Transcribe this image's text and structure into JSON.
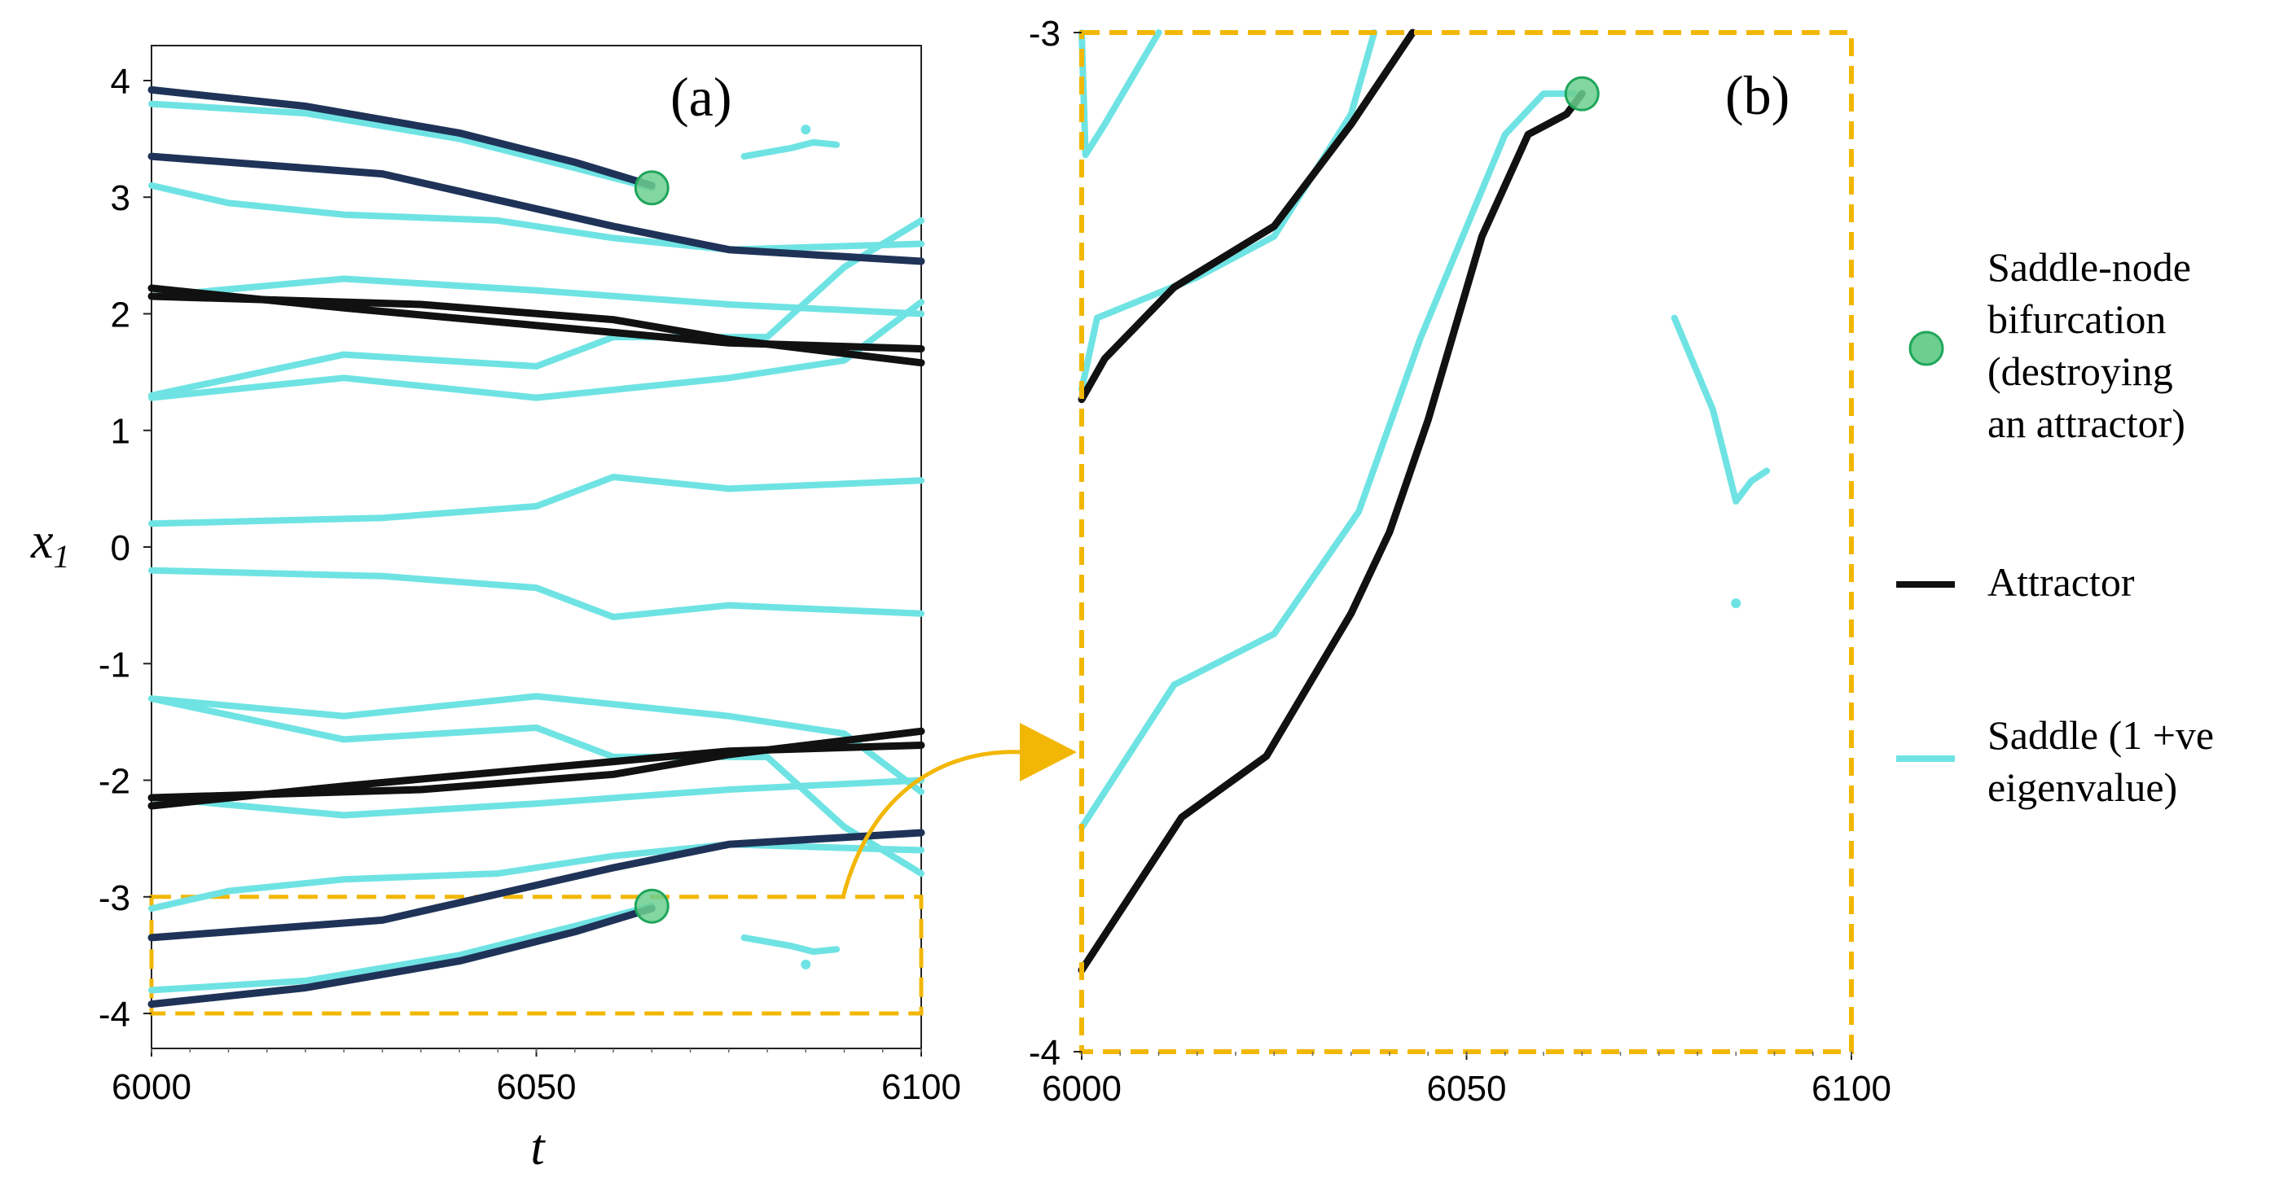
{
  "colors": {
    "saddle": "#6fe3e3",
    "attractor": "#111111",
    "attractor_dark": "#1f3358",
    "bifurcation_fill": "#6ccf8f",
    "bifurcation_stroke": "#1fa65a",
    "highlight": "#f2b705"
  },
  "chart_data": [
    {
      "panel": "(a)",
      "type": "line",
      "xlabel": "t",
      "ylabel": "x",
      "ylabel_sub": "1",
      "xlim": [
        6000,
        6100
      ],
      "ylim": [
        -4.3,
        4.3
      ],
      "xticks": [
        "6000",
        "6050",
        "6100"
      ],
      "yticks": [
        "4",
        "3",
        "2",
        "1",
        "0",
        "-1",
        "-2",
        "-3",
        "-4"
      ],
      "zoom_box": {
        "x": [
          6000,
          6100
        ],
        "y": [
          -4,
          -3
        ]
      },
      "series": [
        {
          "kind": "saddle",
          "points": [
            [
              6000,
              3.8
            ],
            [
              6020,
              3.72
            ],
            [
              6040,
              3.5
            ],
            [
              6055,
              3.25
            ],
            [
              6065,
              3.08
            ]
          ]
        },
        {
          "kind": "saddle",
          "points": [
            [
              6000,
              3.1
            ],
            [
              6010,
              2.95
            ],
            [
              6025,
              2.85
            ],
            [
              6045,
              2.8
            ],
            [
              6060,
              2.65
            ],
            [
              6075,
              2.55
            ],
            [
              6100,
              2.6
            ]
          ]
        },
        {
          "kind": "saddle",
          "points": [
            [
              6000,
              2.15
            ],
            [
              6025,
              2.3
            ],
            [
              6050,
              2.2
            ],
            [
              6075,
              2.08
            ],
            [
              6100,
              2.0
            ]
          ]
        },
        {
          "kind": "saddle",
          "points": [
            [
              6000,
              1.3
            ],
            [
              6025,
              1.65
            ],
            [
              6050,
              1.55
            ],
            [
              6060,
              1.8
            ],
            [
              6080,
              1.8
            ],
            [
              6090,
              2.4
            ],
            [
              6100,
              2.8
            ]
          ]
        },
        {
          "kind": "saddle",
          "points": [
            [
              6000,
              1.28
            ],
            [
              6025,
              1.45
            ],
            [
              6050,
              1.28
            ],
            [
              6075,
              1.45
            ],
            [
              6090,
              1.6
            ],
            [
              6100,
              2.1
            ]
          ]
        },
        {
          "kind": "saddle",
          "points": [
            [
              6000,
              0.2
            ],
            [
              6030,
              0.25
            ],
            [
              6050,
              0.35
            ],
            [
              6060,
              0.6
            ],
            [
              6075,
              0.5
            ],
            [
              6100,
              0.57
            ]
          ]
        },
        {
          "kind": "saddle",
          "points": [
            [
              6000,
              -0.2
            ],
            [
              6030,
              -0.25
            ],
            [
              6050,
              -0.35
            ],
            [
              6060,
              -0.6
            ],
            [
              6075,
              -0.5
            ],
            [
              6100,
              -0.57
            ]
          ]
        },
        {
          "kind": "saddle",
          "points": [
            [
              6000,
              -1.3
            ],
            [
              6025,
              -1.45
            ],
            [
              6050,
              -1.28
            ],
            [
              6075,
              -1.45
            ],
            [
              6090,
              -1.6
            ],
            [
              6100,
              -2.1
            ]
          ]
        },
        {
          "kind": "saddle",
          "points": [
            [
              6000,
              -1.3
            ],
            [
              6025,
              -1.65
            ],
            [
              6050,
              -1.55
            ],
            [
              6060,
              -1.8
            ],
            [
              6080,
              -1.8
            ],
            [
              6090,
              -2.4
            ],
            [
              6100,
              -2.8
            ]
          ]
        },
        {
          "kind": "saddle",
          "points": [
            [
              6000,
              -2.15
            ],
            [
              6025,
              -2.3
            ],
            [
              6050,
              -2.2
            ],
            [
              6075,
              -2.08
            ],
            [
              6100,
              -2.0
            ]
          ]
        },
        {
          "kind": "saddle",
          "points": [
            [
              6000,
              -3.1
            ],
            [
              6010,
              -2.95
            ],
            [
              6025,
              -2.85
            ],
            [
              6045,
              -2.8
            ],
            [
              6060,
              -2.65
            ],
            [
              6075,
              -2.55
            ],
            [
              6100,
              -2.6
            ]
          ]
        },
        {
          "kind": "saddle",
          "points": [
            [
              6000,
              -3.8
            ],
            [
              6020,
              -3.72
            ],
            [
              6040,
              -3.5
            ],
            [
              6055,
              -3.25
            ],
            [
              6065,
              -3.08
            ]
          ]
        },
        {
          "kind": "saddle",
          "points": [
            [
              6077,
              3.35
            ],
            [
              6083,
              3.42
            ],
            [
              6086,
              3.47
            ],
            [
              6089,
              3.45
            ]
          ]
        },
        {
          "kind": "saddle",
          "points": [
            [
              6077,
              -3.35
            ],
            [
              6083,
              -3.42
            ],
            [
              6086,
              -3.47
            ],
            [
              6089,
              -3.45
            ]
          ]
        },
        {
          "kind": "attractor_dark",
          "points": [
            [
              6000,
              3.92
            ],
            [
              6020,
              3.78
            ],
            [
              6040,
              3.55
            ],
            [
              6055,
              3.3
            ],
            [
              6065,
              3.1
            ]
          ]
        },
        {
          "kind": "attractor_dark",
          "points": [
            [
              6000,
              3.35
            ],
            [
              6030,
              3.2
            ],
            [
              6060,
              2.75
            ],
            [
              6075,
              2.55
            ],
            [
              6100,
              2.45
            ]
          ]
        },
        {
          "kind": "attractor",
          "points": [
            [
              6000,
              2.22
            ],
            [
              6025,
              2.05
            ],
            [
              6050,
              1.9
            ],
            [
              6075,
              1.75
            ],
            [
              6100,
              1.7
            ]
          ]
        },
        {
          "kind": "attractor",
          "points": [
            [
              6000,
              2.15
            ],
            [
              6035,
              2.08
            ],
            [
              6060,
              1.95
            ],
            [
              6075,
              1.78
            ],
            [
              6100,
              1.58
            ]
          ]
        },
        {
          "kind": "attractor",
          "points": [
            [
              6000,
              -2.22
            ],
            [
              6025,
              -2.05
            ],
            [
              6050,
              -1.9
            ],
            [
              6075,
              -1.75
            ],
            [
              6100,
              -1.7
            ]
          ]
        },
        {
          "kind": "attractor",
          "points": [
            [
              6000,
              -2.15
            ],
            [
              6035,
              -2.08
            ],
            [
              6060,
              -1.95
            ],
            [
              6075,
              -1.78
            ],
            [
              6100,
              -1.58
            ]
          ]
        },
        {
          "kind": "attractor_dark",
          "points": [
            [
              6000,
              -3.92
            ],
            [
              6020,
              -3.78
            ],
            [
              6040,
              -3.55
            ],
            [
              6055,
              -3.3
            ],
            [
              6065,
              -3.1
            ]
          ]
        },
        {
          "kind": "attractor_dark",
          "points": [
            [
              6000,
              -3.35
            ],
            [
              6030,
              -3.2
            ],
            [
              6060,
              -2.75
            ],
            [
              6075,
              -2.55
            ],
            [
              6100,
              -2.45
            ]
          ]
        }
      ],
      "bifurcations": [
        [
          6065,
          3.08
        ],
        [
          6065,
          -3.08
        ]
      ],
      "points": [
        [
          6085,
          3.58
        ],
        [
          6085,
          -3.58
        ]
      ]
    },
    {
      "panel": "(b)",
      "type": "line",
      "xlim": [
        6000,
        6100
      ],
      "ylim": [
        -4,
        -3
      ],
      "xticks": [
        "6000",
        "6050",
        "6100"
      ],
      "yticks": [
        "-3",
        "-4"
      ],
      "series": [
        {
          "kind": "saddle",
          "points": [
            [
              6000,
              -3.0
            ],
            [
              6000.5,
              -3.12
            ],
            [
              6003,
              -3.09
            ],
            [
              6010,
              -3.0
            ]
          ]
        },
        {
          "kind": "saddle",
          "points": [
            [
              6000,
              -3.35
            ],
            [
              6002,
              -3.28
            ],
            [
              6015,
              -3.24
            ],
            [
              6025,
              -3.2
            ],
            [
              6035,
              -3.08
            ],
            [
              6038,
              -3.0
            ]
          ]
        },
        {
          "kind": "attractor",
          "points": [
            [
              6000,
              -3.36
            ],
            [
              6003,
              -3.32
            ],
            [
              6012,
              -3.25
            ],
            [
              6025,
              -3.19
            ],
            [
              6035,
              -3.09
            ],
            [
              6043,
              -3.0
            ]
          ]
        },
        {
          "kind": "saddle",
          "points": [
            [
              6000,
              -3.78
            ],
            [
              6012,
              -3.64
            ],
            [
              6025,
              -3.59
            ],
            [
              6036,
              -3.47
            ],
            [
              6044,
              -3.3
            ],
            [
              6055,
              -3.1
            ],
            [
              6060,
              -3.06
            ],
            [
              6064,
              -3.06
            ]
          ]
        },
        {
          "kind": "attractor",
          "points": [
            [
              6000,
              -3.92
            ],
            [
              6013,
              -3.77
            ],
            [
              6024,
              -3.71
            ],
            [
              6035,
              -3.57
            ],
            [
              6040,
              -3.49
            ],
            [
              6045,
              -3.38
            ],
            [
              6052,
              -3.2
            ],
            [
              6058,
              -3.1
            ],
            [
              6063,
              -3.08
            ],
            [
              6065,
              -3.06
            ]
          ]
        },
        {
          "kind": "saddle",
          "points": [
            [
              6077,
              -3.28
            ],
            [
              6082,
              -3.37
            ],
            [
              6085,
              -3.46
            ],
            [
              6087,
              -3.44
            ],
            [
              6089,
              -3.43
            ]
          ]
        }
      ],
      "bifurcations": [
        [
          6065,
          -3.06
        ]
      ],
      "points": [
        [
          6085,
          -3.56
        ]
      ]
    }
  ],
  "legend": {
    "bifurcation": [
      "Saddle-node",
      "bifurcation",
      "(destroying",
      "an attractor)"
    ],
    "attractor": [
      "Attractor"
    ],
    "saddle": [
      "Saddle (1 +ve",
      "eigenvalue)"
    ]
  }
}
